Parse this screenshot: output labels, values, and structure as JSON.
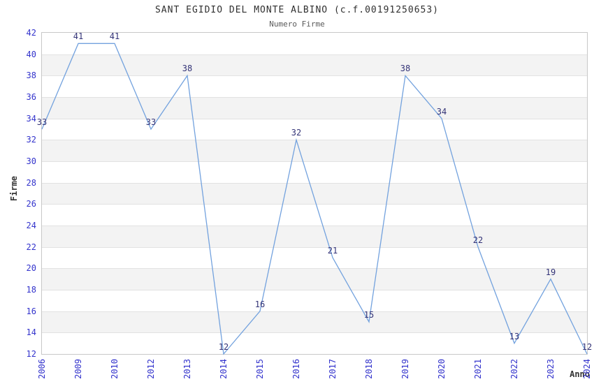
{
  "chart_data": {
    "type": "line",
    "title": "SANT EGIDIO DEL MONTE ALBINO (c.f.00191250653)",
    "subtitle": "Numero Firme",
    "xlabel": "Anno",
    "ylabel": "Firme",
    "categories": [
      "2006",
      "2009",
      "2010",
      "2012",
      "2013",
      "2014",
      "2015",
      "2016",
      "2017",
      "2018",
      "2019",
      "2020",
      "2021",
      "2022",
      "2023",
      "2024"
    ],
    "values": [
      33,
      41,
      41,
      33,
      38,
      12,
      16,
      32,
      21,
      15,
      38,
      34,
      22,
      13,
      19,
      12
    ],
    "ylim": [
      12,
      42
    ],
    "ytick_step": 2,
    "grid": true,
    "legend": false,
    "band_fill": "alternating",
    "colors": {
      "line": "#73a2de",
      "tick_label": "#3333cc",
      "data_label": "#333377",
      "band_gray": "#f3f3f3",
      "band_white": "#ffffff",
      "gridline": "#e2e2e2",
      "plot_border": "#c8c8c8",
      "title": "#303030",
      "subtitle": "#5a5a5a",
      "axis_title": "#333333"
    }
  }
}
